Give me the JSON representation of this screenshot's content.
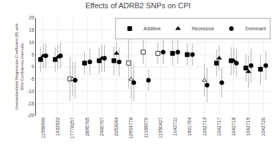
{
  "chart_data": {
    "type": "scatter",
    "title": "Effects of ADRB2 SNPs on CPI",
    "ylabel": "Unstandardized Regression Coefficient (B) and\n95% Confidence Intervals",
    "categories": [
      "11958940",
      "1432622",
      "17778257",
      "2895705",
      "2400707",
      "2053044",
      "12654778",
      "11168070",
      "11950427",
      "1042711",
      "1801704",
      "1042713",
      "1042717",
      "1042718",
      "1042719",
      "1042720"
    ],
    "ylim": [
      -20,
      20
    ],
    "yticks": [
      -20,
      -15,
      -10,
      -5,
      0,
      5,
      10,
      15,
      20
    ],
    "grid": true,
    "legend": "upper right",
    "series": [
      {
        "name": "Additive",
        "marker": "square",
        "values": [
          3.0,
          3.0,
          -5.0,
          1.5,
          2.5,
          2.5,
          1.5,
          6.0,
          5.5,
          5.5,
          5.0,
          null,
          1.5,
          2.5,
          -0.5,
          -1.0
        ],
        "lo": [
          -2.0,
          -2.0,
          -14.0,
          -3.0,
          -3.0,
          -3.5,
          -9.0,
          1.0,
          1.0,
          0.5,
          0.5,
          null,
          -4.0,
          -3.5,
          -6.0,
          -7.5
        ],
        "hi": [
          8.0,
          8.0,
          4.0,
          6.0,
          8.0,
          8.5,
          12.0,
          11.0,
          10.0,
          11.0,
          9.5,
          null,
          7.0,
          8.0,
          5.0,
          5.0
        ],
        "colors": [
          "#000000",
          "#000000",
          "#ffffff",
          "#000000",
          "#000000",
          "#000000",
          "#ffffff",
          "#ffffff",
          "#ffffff",
          "#000000",
          "#000000",
          "#ffffff",
          "#000000",
          "#000000",
          "#000000",
          "#000000"
        ]
      },
      {
        "name": "Recessive",
        "marker": "triangle",
        "values": [
          4.5,
          4.0,
          -5.0,
          null,
          3.5,
          5.5,
          -5.0,
          null,
          null,
          null,
          null,
          -5.5,
          3.5,
          2.5,
          -2.0,
          null
        ],
        "lo": [
          -0.5,
          -1.0,
          -12.0,
          null,
          -2.0,
          0.5,
          -13.0,
          null,
          null,
          null,
          null,
          -12.0,
          -1.5,
          -3.0,
          -8.5,
          null
        ],
        "hi": [
          9.5,
          9.0,
          2.0,
          null,
          9.0,
          10.0,
          3.0,
          null,
          null,
          null,
          null,
          1.0,
          8.5,
          8.0,
          4.5,
          null
        ],
        "colors": [
          "#000000",
          "#000000",
          "#ffffff",
          "#ffffff",
          "#000000",
          "#000000",
          "#ffffff",
          "#ffffff",
          "#ffffff",
          "#ffffff",
          "#ffffff",
          "#ffffff",
          "#000000",
          "#000000",
          "#000000",
          "#ffffff"
        ]
      },
      {
        "name": "Dominant",
        "marker": "circle",
        "values": [
          4.5,
          4.5,
          -5.5,
          2.0,
          3.5,
          2.0,
          -6.5,
          -5.5,
          6.0,
          6.0,
          5.0,
          -7.5,
          -6.5,
          1.5,
          0.5,
          0.5
        ],
        "lo": [
          -0.5,
          -0.5,
          -13.0,
          -3.5,
          -2.0,
          -4.0,
          -14.0,
          -10.0,
          1.0,
          1.0,
          0.5,
          -14.5,
          -12.5,
          -4.0,
          -6.5,
          -5.5
        ],
        "hi": [
          9.5,
          10.0,
          2.0,
          7.5,
          9.0,
          8.0,
          1.0,
          -1.0,
          11.0,
          11.0,
          9.5,
          -0.5,
          -0.5,
          7.5,
          7.5,
          6.5
        ],
        "colors": [
          "#000000",
          "#000000",
          "#000000",
          "#000000",
          "#000000",
          "#000000",
          "#000000",
          "#000000",
          "#000000",
          "#000000",
          "#000000",
          "#000000",
          "#000000",
          "#000000",
          "#000000",
          "#000000"
        ]
      }
    ]
  }
}
